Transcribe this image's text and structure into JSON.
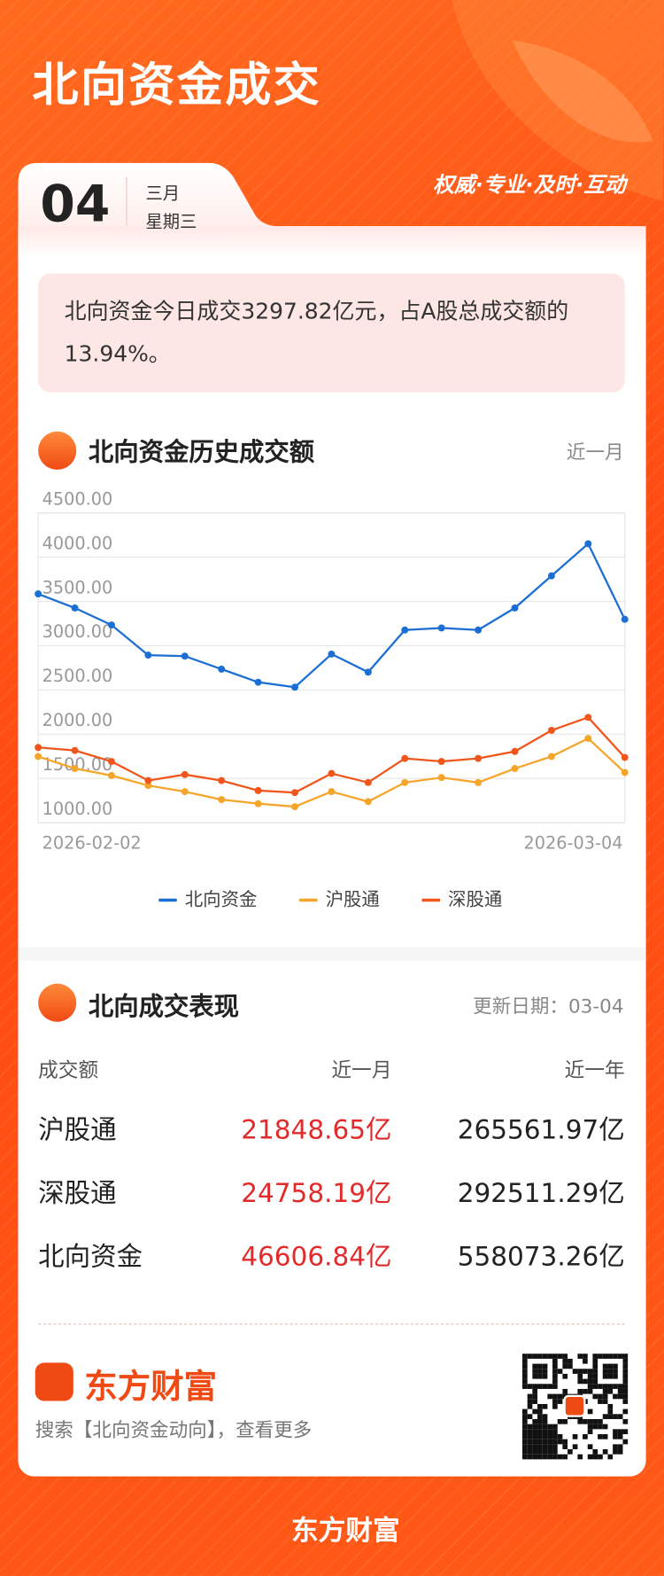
{
  "header": {
    "title": "北向资金成交",
    "day": "04",
    "month": "三月",
    "weekday": "星期三",
    "slogan": "权威·专业·及时·互动"
  },
  "summary": "北向资金今日成交3297.82亿元，占A股总成交额的13.94%。",
  "chart_data": {
    "type": "line",
    "title": "北向资金历史成交额",
    "period": "近一月",
    "categories": [
      "2026-02-02",
      null,
      null,
      null,
      null,
      null,
      null,
      null,
      null,
      null,
      null,
      null,
      null,
      null,
      null,
      null,
      "2026-03-04"
    ],
    "series": [
      {
        "name": "北向资金",
        "color": "#1b6fd4",
        "values": [
          3585,
          3426,
          3234,
          2893,
          2882,
          2735,
          2587,
          2531,
          2905,
          2701,
          3177,
          3200,
          3177,
          3426,
          3789,
          4152,
          3297.82
        ]
      },
      {
        "name": "沪股通",
        "color": "#f5a52a",
        "values": [
          1748,
          1612,
          1533,
          1420,
          1351,
          1261,
          1215,
          1181,
          1351,
          1238,
          1454,
          1510,
          1454,
          1612,
          1748,
          1952,
          1567
        ]
      },
      {
        "name": "深股通",
        "color": "#f0561c",
        "values": [
          1850,
          1816,
          1692,
          1476,
          1544,
          1476,
          1363,
          1340,
          1556,
          1454,
          1726,
          1692,
          1726,
          1805,
          2043,
          2190,
          1737
        ]
      }
    ],
    "ylim": [
      1000,
      4500
    ],
    "yticks": [
      {
        "value": 1000,
        "label": "1000.00"
      },
      {
        "value": 1500,
        "label": "1500.00"
      },
      {
        "value": 2000,
        "label": "2000.00"
      },
      {
        "value": 2500,
        "label": "2500.00"
      },
      {
        "value": 3000,
        "label": "3000.00"
      },
      {
        "value": 3500,
        "label": "3500.00"
      },
      {
        "value": 4000,
        "label": "4000.00"
      },
      {
        "value": 4500,
        "label": "4500.00"
      }
    ],
    "grid": true,
    "legend": "bottom"
  },
  "performance": {
    "title": "北向成交表现",
    "updated": "更新日期：03-04",
    "columns": [
      "成交额",
      "近一月",
      "近一年"
    ],
    "rows": [
      [
        "沪股通",
        "21848.65亿",
        "265561.97亿"
      ],
      [
        "深股通",
        "24758.19亿",
        "292511.29亿"
      ],
      [
        "北向资金",
        "46606.84亿",
        "558073.26亿"
      ]
    ]
  },
  "footer": {
    "brand": "东方财富",
    "search": "搜索【北向资金动向】，查看更多",
    "bottom_brand": "东方财富"
  }
}
